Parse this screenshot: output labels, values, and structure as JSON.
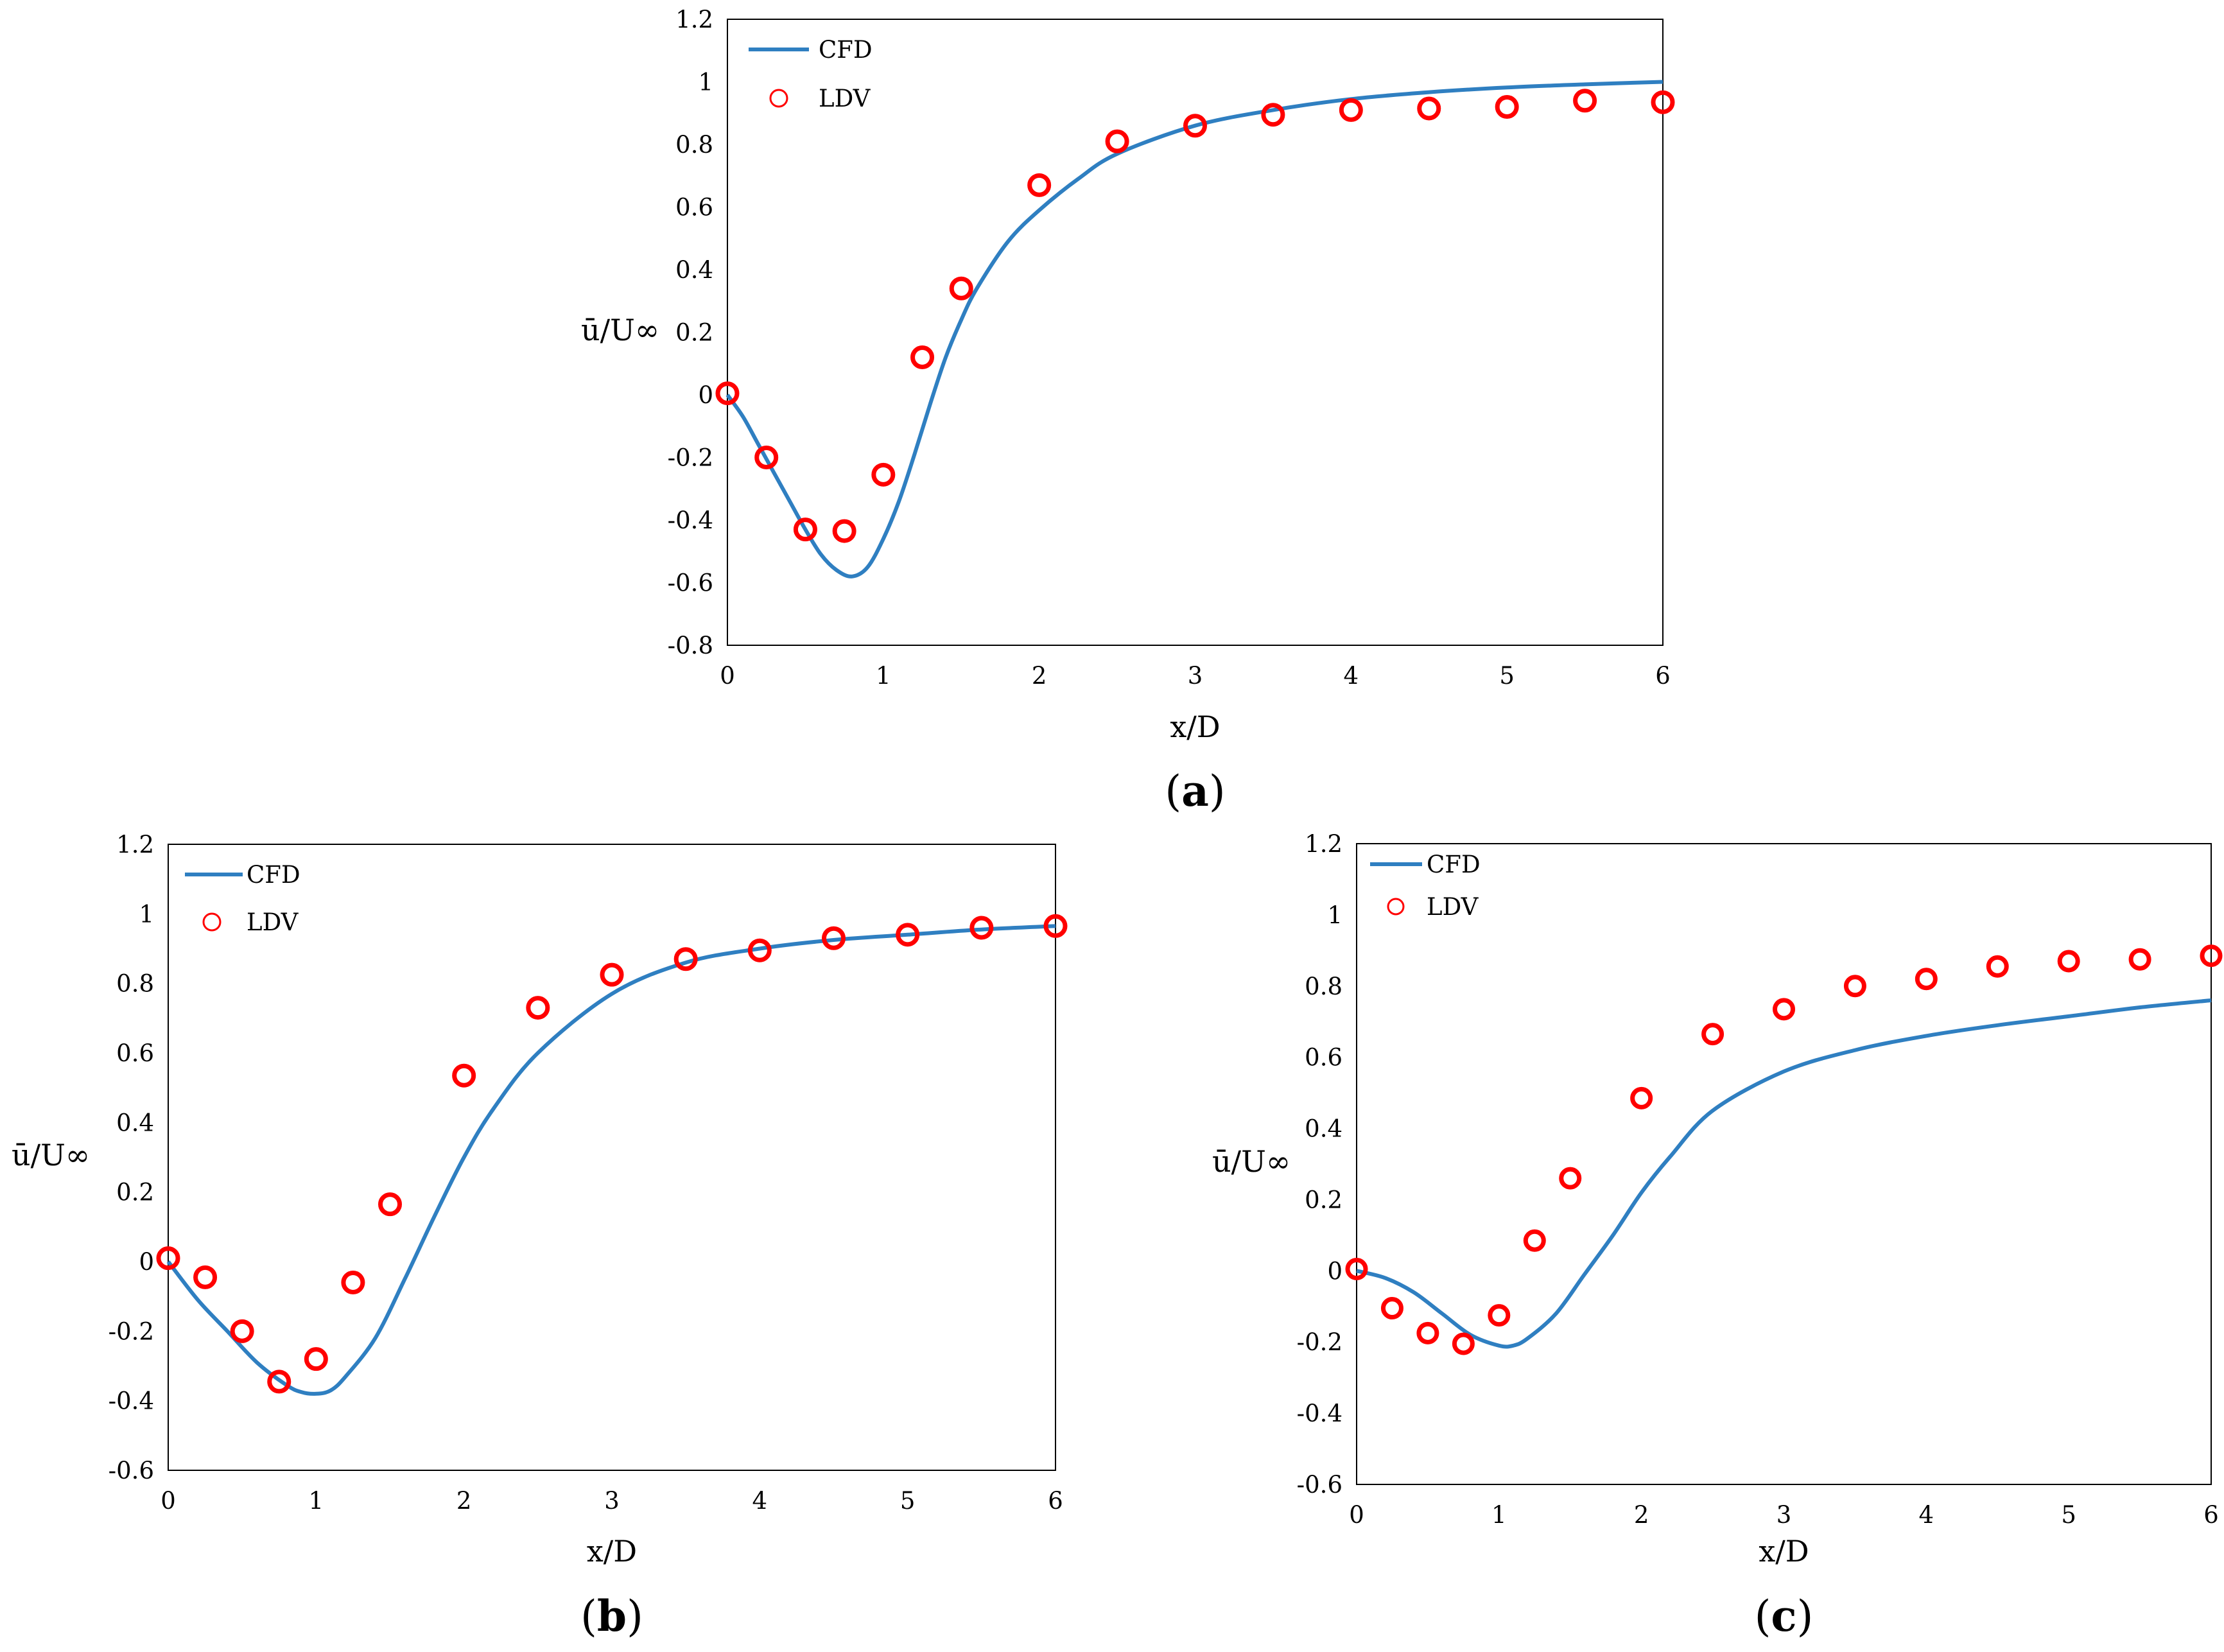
{
  "colors": {
    "cfd": "#2f7fc1",
    "ldv": "#ff0000",
    "frame": "#000000"
  },
  "chart_data": [
    {
      "id": "a",
      "panel_label": "a",
      "type": "line+scatter",
      "xlabel": "x/D",
      "ylabel": "ū/U∞",
      "xlim": [
        0,
        6
      ],
      "ylim": [
        -0.8,
        1.2
      ],
      "xticks": [
        "0",
        "1",
        "2",
        "3",
        "4",
        "5",
        "6"
      ],
      "yticks": [
        "-0.8",
        "-0.6",
        "-0.4",
        "-0.2",
        "0",
        "0.2",
        "0.4",
        "0.6",
        "0.8",
        "1",
        "1.2"
      ],
      "legend": [
        "CFD",
        "LDV"
      ],
      "series": [
        {
          "name": "CFD",
          "type": "line",
          "x": [
            0,
            0.1,
            0.2,
            0.3,
            0.4,
            0.5,
            0.6,
            0.7,
            0.8,
            0.9,
            1.0,
            1.1,
            1.2,
            1.3,
            1.4,
            1.5,
            1.6,
            1.8,
            2.0,
            2.25,
            2.5,
            3.0,
            3.5,
            4.0,
            4.5,
            5.0,
            5.5,
            6.0
          ],
          "y": [
            0,
            -0.07,
            -0.16,
            -0.25,
            -0.34,
            -0.43,
            -0.51,
            -0.56,
            -0.58,
            -0.55,
            -0.46,
            -0.34,
            -0.19,
            -0.03,
            0.12,
            0.24,
            0.34,
            0.49,
            0.59,
            0.69,
            0.77,
            0.86,
            0.91,
            0.945,
            0.967,
            0.982,
            0.992,
            1.0
          ]
        },
        {
          "name": "LDV",
          "type": "scatter",
          "x": [
            0,
            0.25,
            0.5,
            0.75,
            1.0,
            1.25,
            1.5,
            2.0,
            2.5,
            3.0,
            3.5,
            4.0,
            4.5,
            5.0,
            5.5,
            6.0
          ],
          "y": [
            0.005,
            -0.2,
            -0.43,
            -0.435,
            -0.255,
            0.12,
            0.34,
            0.67,
            0.81,
            0.86,
            0.895,
            0.91,
            0.915,
            0.92,
            0.94,
            0.935
          ]
        }
      ]
    },
    {
      "id": "b",
      "panel_label": "b",
      "type": "line+scatter",
      "xlabel": "x/D",
      "ylabel": "ū/U∞",
      "xlim": [
        0,
        6
      ],
      "ylim": [
        -0.6,
        1.2
      ],
      "xticks": [
        "0",
        "1",
        "2",
        "3",
        "4",
        "5",
        "6"
      ],
      "yticks": [
        "-0.6",
        "-0.4",
        "-0.2",
        "0",
        "0.2",
        "0.4",
        "0.6",
        "0.8",
        "1",
        "1.2"
      ],
      "legend": [
        "CFD",
        "LDV"
      ],
      "series": [
        {
          "name": "CFD",
          "type": "line",
          "x": [
            0,
            0.2,
            0.4,
            0.6,
            0.8,
            0.9,
            1.0,
            1.1,
            1.2,
            1.4,
            1.6,
            1.8,
            2.0,
            2.2,
            2.5,
            3.0,
            3.5,
            4.0,
            4.5,
            5.0,
            5.5,
            6.0
          ],
          "y": [
            0,
            -0.11,
            -0.2,
            -0.29,
            -0.355,
            -0.375,
            -0.38,
            -0.37,
            -0.33,
            -0.22,
            -0.05,
            0.13,
            0.3,
            0.44,
            0.6,
            0.77,
            0.86,
            0.9,
            0.925,
            0.94,
            0.955,
            0.965
          ]
        },
        {
          "name": "LDV",
          "type": "scatter",
          "x": [
            0,
            0.25,
            0.5,
            0.75,
            1.0,
            1.25,
            1.5,
            2.0,
            2.5,
            3.0,
            3.5,
            4.0,
            4.5,
            5.0,
            5.5,
            6.0
          ],
          "y": [
            0.01,
            -0.045,
            -0.2,
            -0.345,
            -0.28,
            -0.06,
            0.165,
            0.535,
            0.73,
            0.825,
            0.87,
            0.895,
            0.93,
            0.94,
            0.96,
            0.965
          ]
        }
      ]
    },
    {
      "id": "c",
      "panel_label": "c",
      "type": "line+scatter",
      "xlabel": "x/D",
      "ylabel": "ū/U∞",
      "xlim": [
        0,
        6
      ],
      "ylim": [
        -0.6,
        1.2
      ],
      "xticks": [
        "0",
        "1",
        "2",
        "3",
        "4",
        "5",
        "6"
      ],
      "yticks": [
        "-0.6",
        "-0.4",
        "-0.2",
        "0",
        "0.2",
        "0.4",
        "0.6",
        "0.8",
        "1",
        "1.2"
      ],
      "legend": [
        "CFD",
        "LDV"
      ],
      "series": [
        {
          "name": "CFD",
          "type": "line",
          "x": [
            0,
            0.2,
            0.4,
            0.6,
            0.8,
            1.0,
            1.1,
            1.2,
            1.4,
            1.6,
            1.8,
            2.0,
            2.2,
            2.5,
            3.0,
            3.5,
            4.0,
            4.5,
            5.0,
            5.5,
            6.0
          ],
          "y": [
            0,
            -0.02,
            -0.06,
            -0.12,
            -0.18,
            -0.21,
            -0.21,
            -0.19,
            -0.12,
            -0.01,
            0.1,
            0.22,
            0.32,
            0.45,
            0.56,
            0.62,
            0.66,
            0.69,
            0.715,
            0.74,
            0.76
          ]
        },
        {
          "name": "LDV",
          "type": "scatter",
          "x": [
            0,
            0.25,
            0.5,
            0.75,
            1.0,
            1.25,
            1.5,
            2.0,
            2.5,
            3.0,
            3.5,
            4.0,
            4.5,
            5.0,
            5.5,
            6.0
          ],
          "y": [
            0.005,
            -0.105,
            -0.175,
            -0.205,
            -0.125,
            0.085,
            0.26,
            0.485,
            0.665,
            0.735,
            0.8,
            0.82,
            0.855,
            0.87,
            0.875,
            0.885
          ]
        }
      ]
    }
  ]
}
